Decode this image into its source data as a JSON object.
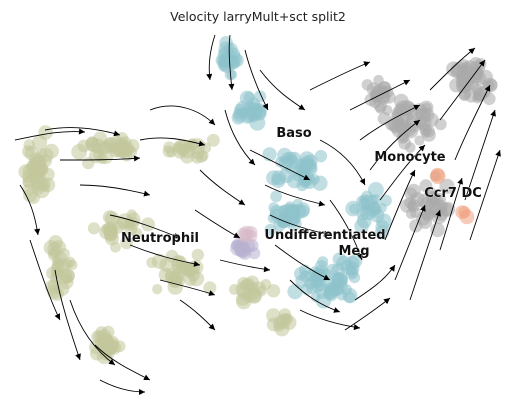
{
  "chart_data": {
    "type": "scatter",
    "subtype": "embedding-velocity-stream",
    "title": "Velocity larryMult+sct split2",
    "xlabel": "",
    "ylabel": "",
    "axes_visible": false,
    "grid": false,
    "legend": "on-data",
    "clusters": [
      {
        "name": "Baso",
        "label": "Baso",
        "color": "#8ec3cc"
      },
      {
        "name": "Monocyte",
        "label": "Monocyte",
        "color": "#a9a9a9"
      },
      {
        "name": "Ccr7 DC",
        "label": "Ccr7 DC",
        "color": "#f0a080"
      },
      {
        "name": "Neutrophil",
        "label": "Neutrophil",
        "color": "#c3c69b"
      },
      {
        "name": "Undifferentiated",
        "label": "Undifferentiated",
        "color": "#b8b0cf"
      },
      {
        "name": "Meg",
        "label": "Meg",
        "color": "#d7b9c9"
      }
    ],
    "stream_color": "#000000"
  }
}
